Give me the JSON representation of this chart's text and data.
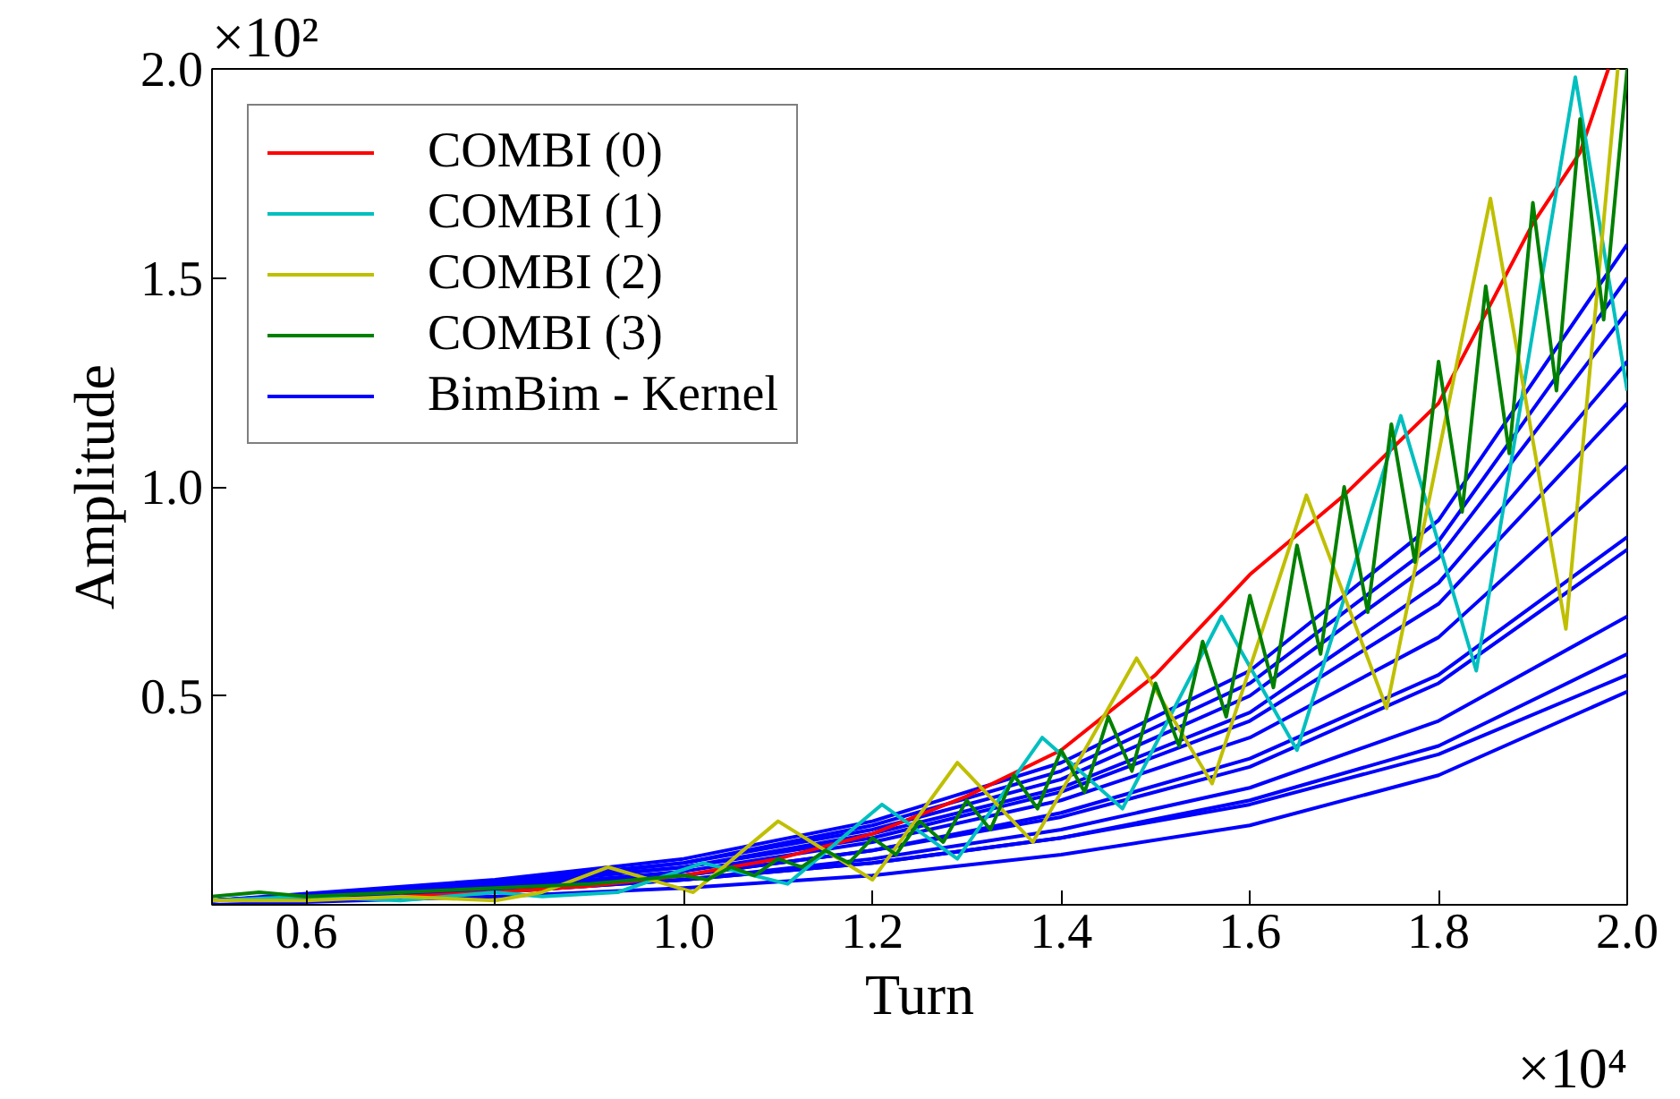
{
  "chart_data": {
    "type": "line",
    "xlabel": "Turn",
    "ylabel": "Amplitude",
    "annotations": [
      "×10²",
      "×10⁴"
    ],
    "xlim": [
      0.5,
      2.0
    ],
    "ylim": [
      0,
      2.0
    ],
    "xticks": [
      {
        "value": 0.6,
        "label": "0.6"
      },
      {
        "value": 0.8,
        "label": "0.8"
      },
      {
        "value": 1.0,
        "label": "1.0"
      },
      {
        "value": 1.2,
        "label": "1.2"
      },
      {
        "value": 1.4,
        "label": "1.4"
      },
      {
        "value": 1.6,
        "label": "1.6"
      },
      {
        "value": 1.8,
        "label": "1.8"
      },
      {
        "value": 2.0,
        "label": "2.0"
      }
    ],
    "yticks": [
      {
        "value": 0.5,
        "label": "0.5"
      },
      {
        "value": 1.0,
        "label": "1.0"
      },
      {
        "value": 1.5,
        "label": "1.5"
      },
      {
        "value": 2.0,
        "label": "2.0"
      }
    ],
    "grid": false,
    "legend": "top left",
    "marker": "none",
    "line_style": "solid",
    "series": [
      {
        "name": "BimBim - Kernel",
        "color": "#0000ff",
        "x": [
          0.5,
          0.8,
          1.0,
          1.2,
          1.4,
          1.6,
          1.8,
          2.0
        ],
        "values": [
          0.01,
          0.06,
          0.11,
          0.2,
          0.34,
          0.56,
          0.92,
          1.58
        ]
      },
      {
        "color": "#0000ff",
        "x": [
          0.5,
          0.8,
          1.0,
          1.2,
          1.4,
          1.6,
          1.8,
          2.0
        ],
        "values": [
          0.01,
          0.055,
          0.1,
          0.19,
          0.32,
          0.53,
          0.87,
          1.5
        ]
      },
      {
        "color": "#0000ff",
        "x": [
          0.5,
          0.8,
          1.0,
          1.2,
          1.4,
          1.6,
          1.8,
          2.0
        ],
        "values": [
          0.01,
          0.05,
          0.1,
          0.18,
          0.3,
          0.5,
          0.83,
          1.42
        ]
      },
      {
        "color": "#0000ff",
        "x": [
          0.5,
          0.8,
          1.0,
          1.2,
          1.4,
          1.6,
          1.8,
          2.0
        ],
        "values": [
          0.01,
          0.05,
          0.09,
          0.17,
          0.28,
          0.46,
          0.77,
          1.3
        ]
      },
      {
        "color": "#0000ff",
        "x": [
          0.5,
          0.8,
          1.0,
          1.2,
          1.4,
          1.6,
          1.8,
          2.0
        ],
        "values": [
          0.01,
          0.045,
          0.09,
          0.16,
          0.27,
          0.44,
          0.72,
          1.2
        ]
      },
      {
        "color": "#0000ff",
        "x": [
          0.5,
          0.8,
          1.0,
          1.2,
          1.4,
          1.6,
          1.8,
          2.0
        ],
        "values": [
          0.01,
          0.04,
          0.08,
          0.15,
          0.25,
          0.4,
          0.64,
          1.05
        ]
      },
      {
        "color": "#0000ff",
        "x": [
          0.5,
          0.8,
          1.0,
          1.2,
          1.4,
          1.6,
          1.8,
          2.0
        ],
        "values": [
          0.01,
          0.04,
          0.07,
          0.13,
          0.22,
          0.35,
          0.55,
          0.88
        ]
      },
      {
        "color": "#0000ff",
        "x": [
          0.5,
          0.8,
          1.0,
          1.2,
          1.4,
          1.6,
          1.8,
          2.0
        ],
        "values": [
          0.01,
          0.04,
          0.07,
          0.13,
          0.21,
          0.33,
          0.53,
          0.85
        ]
      },
      {
        "color": "#0000ff",
        "x": [
          0.5,
          0.8,
          1.0,
          1.2,
          1.4,
          1.6,
          1.8,
          2.0
        ],
        "values": [
          0.01,
          0.035,
          0.06,
          0.11,
          0.18,
          0.28,
          0.44,
          0.69
        ]
      },
      {
        "color": "#0000ff",
        "x": [
          0.5,
          0.8,
          1.0,
          1.2,
          1.4,
          1.6,
          1.8,
          2.0
        ],
        "values": [
          0.01,
          0.03,
          0.06,
          0.1,
          0.16,
          0.25,
          0.38,
          0.6
        ]
      },
      {
        "color": "#0000ff",
        "x": [
          0.5,
          0.8,
          1.0,
          1.2,
          1.4,
          1.6,
          1.8,
          2.0
        ],
        "values": [
          0.01,
          0.03,
          0.06,
          0.1,
          0.16,
          0.24,
          0.36,
          0.55
        ]
      },
      {
        "color": "#0000ff",
        "x": [
          0.5,
          0.8,
          1.0,
          1.2,
          1.4,
          1.6,
          1.8,
          2.0
        ],
        "values": [
          0.0,
          0.02,
          0.04,
          0.07,
          0.12,
          0.19,
          0.31,
          0.51
        ]
      },
      {
        "name": "COMBI (0)",
        "color": "#ff0000",
        "x": [
          0.7,
          0.8,
          0.9,
          1.0,
          1.1,
          1.2,
          1.3,
          1.4,
          1.5,
          1.6,
          1.7,
          1.8,
          1.9,
          1.95,
          1.98
        ],
        "values": [
          0.02,
          0.03,
          0.045,
          0.07,
          0.11,
          0.17,
          0.26,
          0.37,
          0.55,
          0.79,
          0.98,
          1.2,
          1.63,
          1.8,
          2.0
        ]
      },
      {
        "name": "COMBI (1)",
        "color": "#00bfbf",
        "x": [
          0.5,
          0.6,
          0.7,
          0.8,
          0.85,
          0.93,
          1.02,
          1.11,
          1.21,
          1.29,
          1.38,
          1.465,
          1.57,
          1.65,
          1.76,
          1.84,
          1.945,
          2.0
        ],
        "values": [
          0.01,
          0.02,
          0.01,
          0.03,
          0.02,
          0.03,
          0.1,
          0.05,
          0.24,
          0.11,
          0.4,
          0.23,
          0.69,
          0.37,
          1.17,
          0.56,
          1.98,
          1.23
        ]
      },
      {
        "name": "COMBI (2)",
        "color": "#bfbf00",
        "x": [
          0.5,
          0.6,
          0.7,
          0.8,
          0.85,
          0.92,
          1.01,
          1.1,
          1.2,
          1.29,
          1.37,
          1.48,
          1.56,
          1.66,
          1.745,
          1.855,
          1.935,
          1.99
        ],
        "values": [
          0.01,
          0.01,
          0.02,
          0.01,
          0.03,
          0.09,
          0.03,
          0.2,
          0.06,
          0.34,
          0.15,
          0.59,
          0.29,
          0.98,
          0.47,
          1.69,
          0.66,
          2.0
        ]
      },
      {
        "name": "COMBI (3)",
        "color": "#008000",
        "x": [
          0.5,
          0.55,
          0.6,
          0.7,
          0.8,
          0.9,
          1.0,
          1.025,
          1.05,
          1.075,
          1.1,
          1.125,
          1.15,
          1.175,
          1.2,
          1.225,
          1.25,
          1.275,
          1.3,
          1.325,
          1.35,
          1.375,
          1.4,
          1.425,
          1.45,
          1.475,
          1.5,
          1.525,
          1.55,
          1.575,
          1.6,
          1.625,
          1.65,
          1.675,
          1.7,
          1.725,
          1.75,
          1.775,
          1.8,
          1.825,
          1.85,
          1.875,
          1.9,
          1.925,
          1.95,
          1.975,
          2.0
        ],
        "values": [
          0.02,
          0.03,
          0.02,
          0.03,
          0.04,
          0.05,
          0.07,
          0.06,
          0.09,
          0.07,
          0.11,
          0.09,
          0.13,
          0.1,
          0.16,
          0.12,
          0.2,
          0.15,
          0.25,
          0.18,
          0.31,
          0.23,
          0.37,
          0.27,
          0.45,
          0.32,
          0.53,
          0.38,
          0.63,
          0.45,
          0.74,
          0.52,
          0.86,
          0.6,
          1.0,
          0.7,
          1.15,
          0.82,
          1.3,
          0.94,
          1.48,
          1.08,
          1.68,
          1.23,
          1.88,
          1.4,
          2.0
        ]
      }
    ]
  }
}
